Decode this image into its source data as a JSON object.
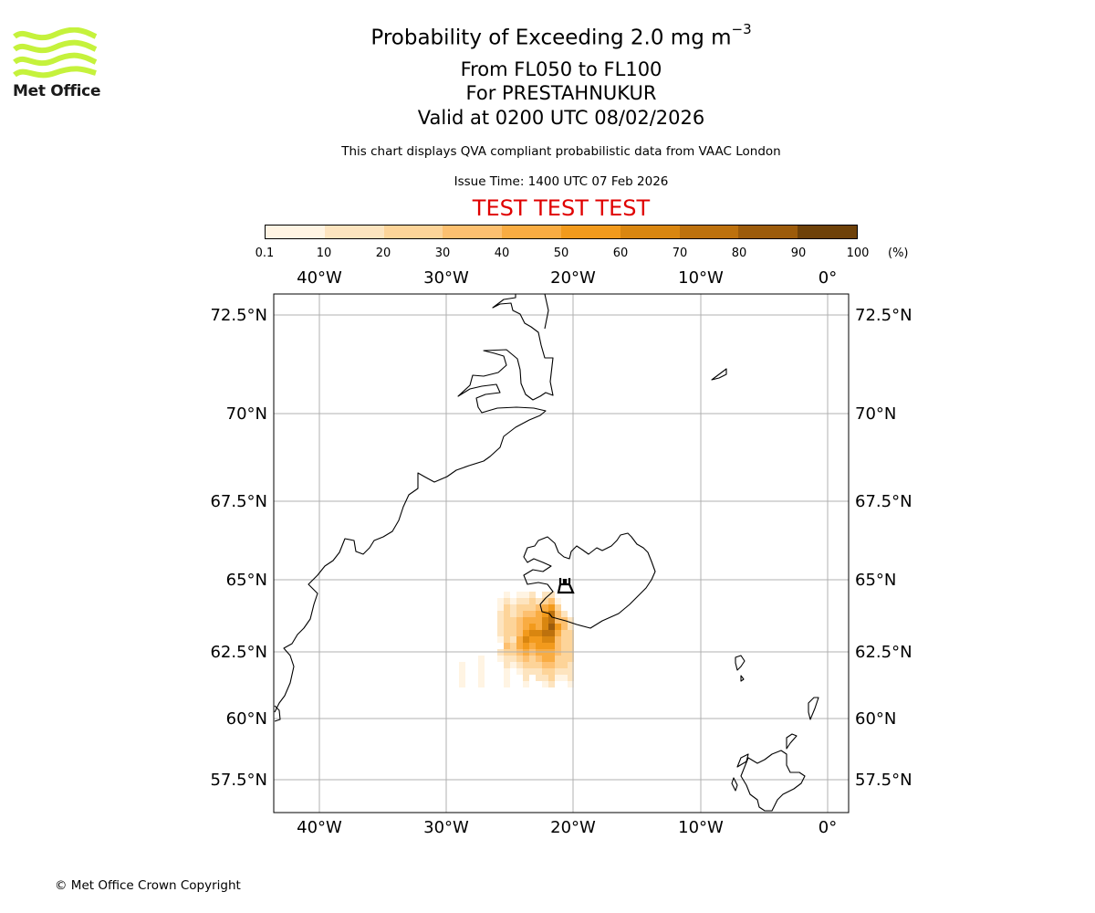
{
  "logo": {
    "text": "Met Office",
    "color": "#c5f23c"
  },
  "title": {
    "prefix": "Probability of Exceeding 2.0 mg m",
    "superscript": "−3"
  },
  "subtitle_levels": "From FL050 to FL100",
  "subtitle_volcano": "For PRESTAHNUKUR",
  "subtitle_valid": "Valid at 0200 UTC 08/02/2026",
  "note": "This chart displays QVA compliant probabilistic data from VAAC London",
  "issue_time": "Issue Time: 1400 UTC 07 Feb 2026",
  "test_banner": "TEST TEST TEST",
  "colorbar": {
    "labels": [
      "0.1",
      "10",
      "20",
      "30",
      "40",
      "50",
      "60",
      "70",
      "80",
      "90",
      "100"
    ],
    "unit": "(%)",
    "colors": [
      "#fff4e3",
      "#fde4bf",
      "#fdd499",
      "#fdc070",
      "#f9ac42",
      "#f29a1c",
      "#d98610",
      "#bd710d",
      "#9c5b0b",
      "#6e4109"
    ]
  },
  "map": {
    "lon_labels": [
      "40°W",
      "30°W",
      "20°W",
      "10°W",
      "0°"
    ],
    "lat_labels": [
      "72.5°N",
      "70°N",
      "67.5°N",
      "65°N",
      "62.5°N",
      "60°N",
      "57.5°N"
    ],
    "volcano_icon": "volcano-icon"
  },
  "copyright": "© Met Office Crown Copyright"
}
